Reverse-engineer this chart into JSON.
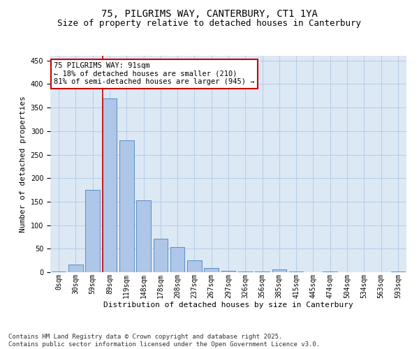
{
  "title1": "75, PILGRIMS WAY, CANTERBURY, CT1 1YA",
  "title2": "Size of property relative to detached houses in Canterbury",
  "xlabel": "Distribution of detached houses by size in Canterbury",
  "ylabel": "Number of detached properties",
  "bar_labels": [
    "0sqm",
    "30sqm",
    "59sqm",
    "89sqm",
    "119sqm",
    "148sqm",
    "178sqm",
    "208sqm",
    "237sqm",
    "267sqm",
    "297sqm",
    "326sqm",
    "356sqm",
    "385sqm",
    "415sqm",
    "445sqm",
    "474sqm",
    "504sqm",
    "534sqm",
    "563sqm",
    "593sqm"
  ],
  "bar_values": [
    2,
    16,
    175,
    370,
    280,
    153,
    71,
    54,
    25,
    9,
    3,
    2,
    1,
    6,
    1,
    0,
    1,
    0,
    0,
    0,
    1
  ],
  "bar_color": "#aec6e8",
  "bar_edge_color": "#5a8fc2",
  "bg_color": "#dde8f5",
  "grid_color": "#b8cfe8",
  "vline_x_idx": 3,
  "vline_color": "#cc0000",
  "annotation_text": "75 PILGRIMS WAY: 91sqm\n← 18% of detached houses are smaller (210)\n81% of semi-detached houses are larger (945) →",
  "annotation_box_color": "#cc0000",
  "ylim": [
    0,
    460
  ],
  "yticks": [
    0,
    50,
    100,
    150,
    200,
    250,
    300,
    350,
    400,
    450
  ],
  "footnote": "Contains HM Land Registry data © Crown copyright and database right 2025.\nContains public sector information licensed under the Open Government Licence v3.0.",
  "title1_fontsize": 10,
  "title2_fontsize": 9,
  "xlabel_fontsize": 8,
  "ylabel_fontsize": 8,
  "tick_fontsize": 7,
  "annot_fontsize": 7.5,
  "footnote_fontsize": 6.5
}
